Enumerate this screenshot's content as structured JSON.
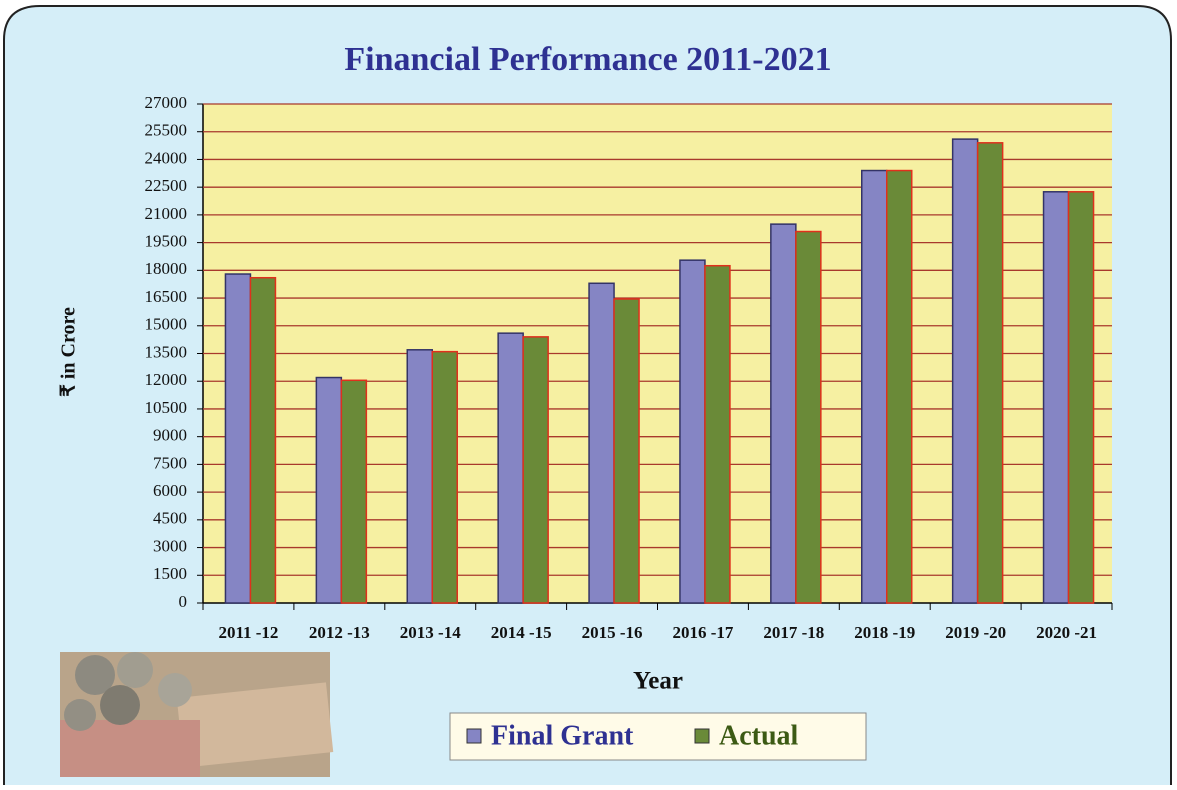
{
  "chart_data": {
    "type": "bar",
    "title": "Financial Performance 2011-2021",
    "x_label": "Year",
    "y_label": "₹ in Crore",
    "categories": [
      "2011 -12",
      "2012 -13",
      "2013 -14",
      "2014 -15",
      "2015 -16",
      "2016 -17",
      "2017 -18",
      "2018 -19",
      "2019 -20",
      "2020 -21"
    ],
    "series": [
      {
        "name": "Final Grant",
        "color": "#8585c4",
        "values": [
          17800,
          12200,
          13700,
          14600,
          17300,
          18550,
          20500,
          23400,
          25100,
          22250
        ]
      },
      {
        "name": "Actual",
        "color": "#6a8a38",
        "values": [
          17600,
          12050,
          13600,
          14400,
          16450,
          18250,
          20100,
          23400,
          24900,
          22250
        ]
      }
    ],
    "ylim": [
      0,
      27000
    ],
    "yticks": [
      0,
      1500,
      3000,
      4500,
      6000,
      7500,
      9000,
      10500,
      12000,
      13500,
      15000,
      16500,
      18000,
      19500,
      21000,
      22500,
      24000,
      25500,
      27000
    ],
    "grid": true,
    "legend": "bottom"
  }
}
